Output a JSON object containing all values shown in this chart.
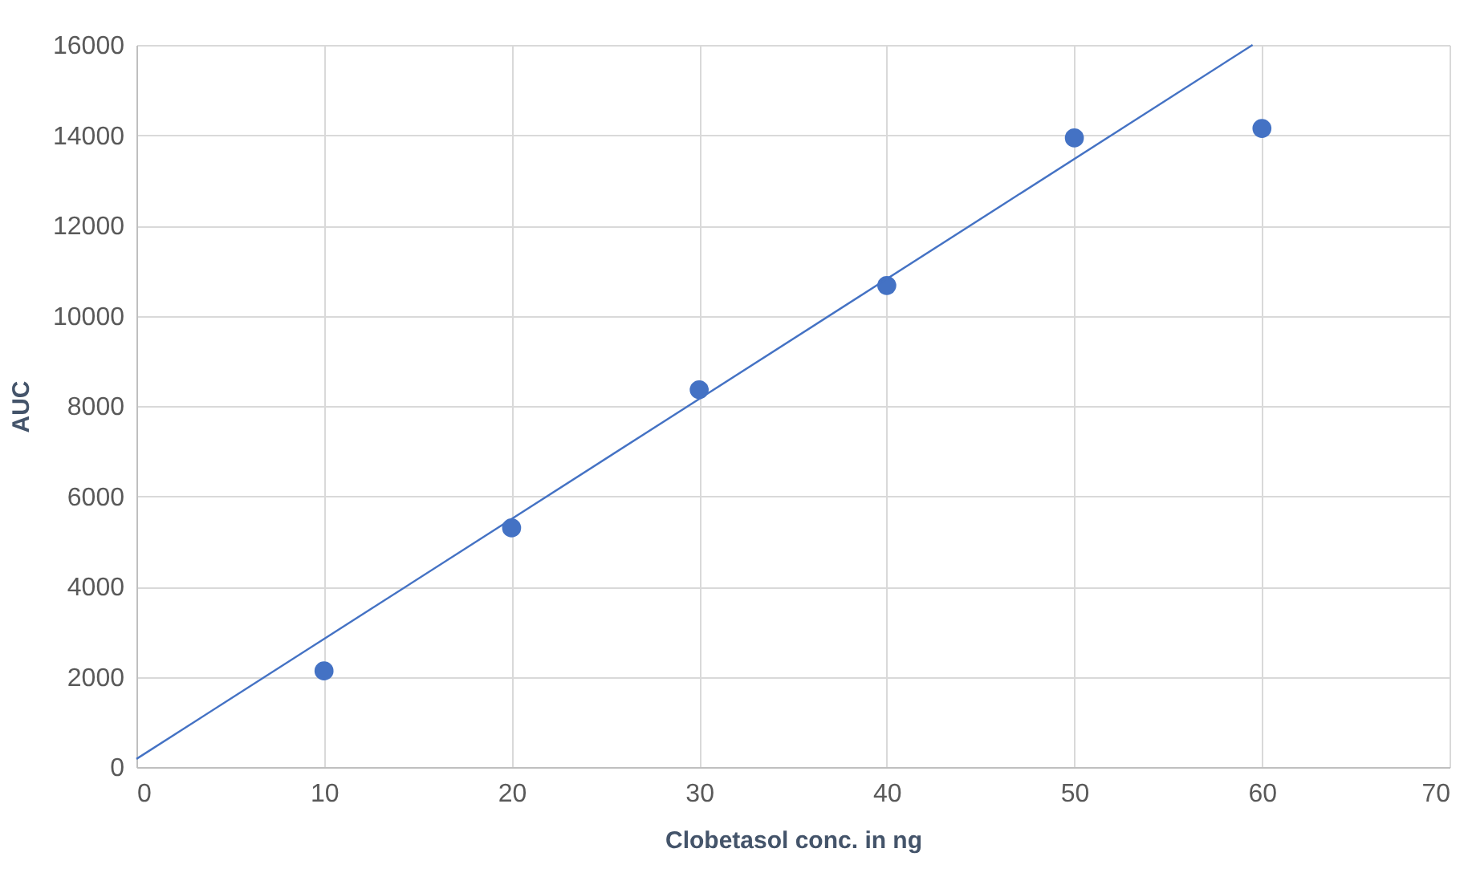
{
  "chart_data": {
    "type": "scatter",
    "xlabel": "Clobetasol conc. in ng",
    "ylabel": "AUC",
    "x": [
      10,
      20,
      30,
      40,
      50,
      60
    ],
    "series": [
      {
        "color": "#4472c4",
        "values": [
          2130,
          5300,
          8360,
          10670,
          13940,
          14150
        ]
      },
      {
        "type": "line",
        "marker": "none",
        "color": "#4472c4",
        "x": [
          0,
          59.5
        ],
        "values": [
          180,
          16000
        ]
      }
    ],
    "xlim": [
      0,
      70
    ],
    "xticks": [
      0,
      10,
      20,
      30,
      40,
      50,
      60,
      70
    ],
    "ylim": [
      0,
      16000
    ],
    "yticks": [
      0,
      2000,
      4000,
      6000,
      8000,
      10000,
      12000,
      14000,
      16000
    ],
    "grid": true,
    "marker": "circle",
    "line_style": "solid"
  }
}
